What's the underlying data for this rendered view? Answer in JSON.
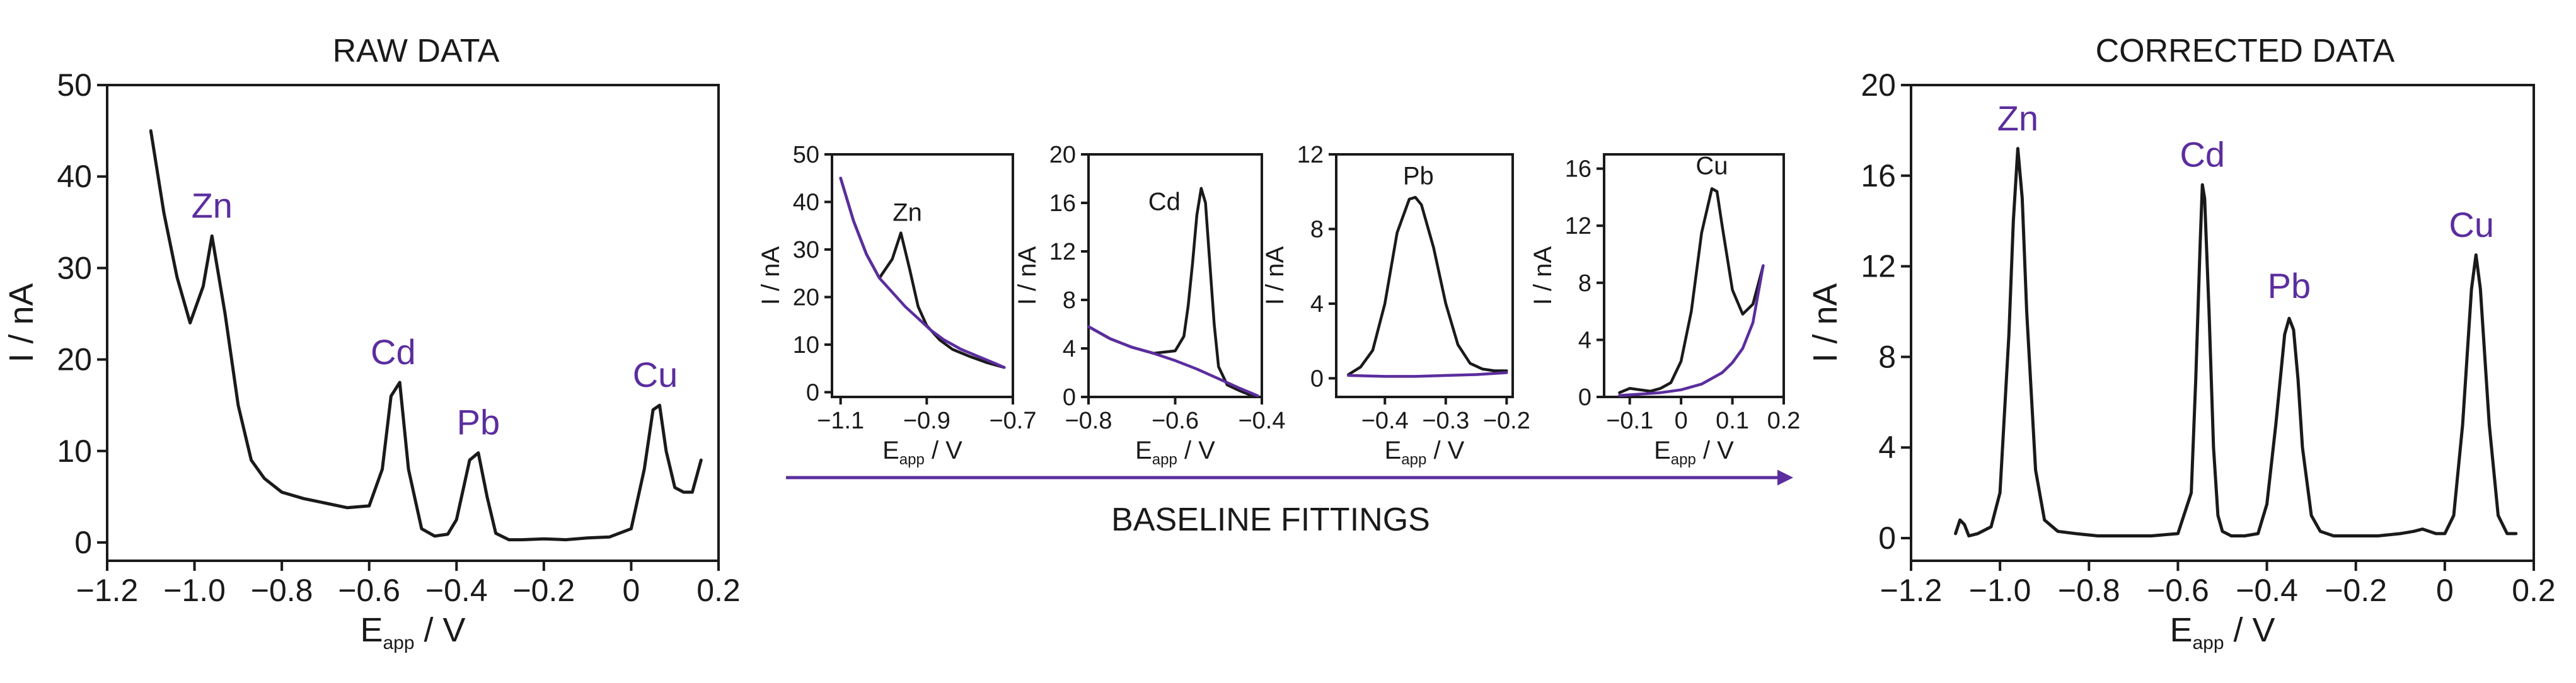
{
  "colors": {
    "raw": "#1a1a1a",
    "baseline": "#5b2d9e",
    "label": "#5b2d9e"
  },
  "panels": {
    "raw": {
      "title": "RAW DATA",
      "xlabel_main": "E",
      "xlabel_sub": "app",
      "xlabel_unit": " / V",
      "ylabel": "I / nA"
    },
    "corrected": {
      "title": "CORRECTED DATA",
      "xlabel_main": "E",
      "xlabel_sub": "app",
      "xlabel_unit": " / V",
      "ylabel": "I / nA"
    }
  },
  "flow": {
    "label": "BASELINE FITTINGS"
  },
  "chart_data": [
    {
      "type": "line",
      "id": "raw",
      "title": "RAW DATA",
      "xlabel": "E_app / V",
      "ylabel": "I / nA",
      "xlim": [
        -1.2,
        0.2
      ],
      "ylim": [
        -2,
        50
      ],
      "xticks": [
        -1.2,
        -1.0,
        -0.8,
        -0.6,
        -0.4,
        -0.2,
        0,
        0.2
      ],
      "xticklabels": [
        "−1.2",
        "−1.0",
        "−0.8",
        "−0.6",
        "−0.4",
        "−0.2",
        "0",
        "0.2"
      ],
      "yticks": [
        0,
        10,
        20,
        30,
        40,
        50
      ],
      "yticklabels": [
        "0",
        "10",
        "20",
        "30",
        "40",
        "50"
      ],
      "series": [
        {
          "name": "raw",
          "color": "#1a1a1a",
          "x": [
            -1.1,
            -1.07,
            -1.04,
            -1.01,
            -0.98,
            -0.96,
            -0.93,
            -0.9,
            -0.87,
            -0.84,
            -0.8,
            -0.75,
            -0.7,
            -0.65,
            -0.6,
            -0.57,
            -0.55,
            -0.53,
            -0.51,
            -0.48,
            -0.45,
            -0.42,
            -0.4,
            -0.37,
            -0.35,
            -0.33,
            -0.31,
            -0.28,
            -0.25,
            -0.2,
            -0.15,
            -0.1,
            -0.05,
            0.0,
            0.03,
            0.05,
            0.065,
            0.08,
            0.1,
            0.12,
            0.14,
            0.16
          ],
          "y": [
            45,
            36,
            29,
            24,
            28,
            33.5,
            25,
            15,
            9,
            7,
            5.5,
            4.8,
            4.3,
            3.8,
            4,
            8,
            16,
            17.5,
            8,
            1.5,
            0.7,
            0.9,
            2.5,
            9,
            9.8,
            5,
            1,
            0.3,
            0.3,
            0.4,
            0.3,
            0.5,
            0.6,
            1.5,
            8,
            14.5,
            15,
            10,
            6,
            5.5,
            5.5,
            9
          ]
        }
      ],
      "annotations": [
        {
          "text": "Zn",
          "x": -0.96,
          "y": 35.5
        },
        {
          "text": "Cd",
          "x": -0.545,
          "y": 19.5
        },
        {
          "text": "Pb",
          "x": -0.35,
          "y": 11.8
        },
        {
          "text": "Cu",
          "x": 0.055,
          "y": 17
        }
      ]
    },
    {
      "type": "line",
      "id": "fit-zn",
      "xlabel": "E_app / V",
      "ylabel": "I / nA",
      "xlim": [
        -1.12,
        -0.7
      ],
      "ylim": [
        -1,
        50
      ],
      "xticks": [
        -1.1,
        -0.9,
        -0.7
      ],
      "xticklabels": [
        "−1.1",
        "−0.9",
        "−0.7"
      ],
      "yticks": [
        0,
        10,
        20,
        30,
        40,
        50
      ],
      "yticklabels": [
        "0",
        "10",
        "20",
        "30",
        "40",
        "50"
      ],
      "series": [
        {
          "name": "raw",
          "color": "#1a1a1a",
          "x": [
            -1.1,
            -1.07,
            -1.04,
            -1.01,
            -0.98,
            -0.96,
            -0.94,
            -0.92,
            -0.9,
            -0.87,
            -0.84,
            -0.8,
            -0.76,
            -0.72
          ],
          "y": [
            45,
            36,
            29,
            24,
            28,
            33.5,
            26,
            18,
            14,
            11,
            9,
            7.5,
            6.2,
            5.2
          ]
        },
        {
          "name": "baseline",
          "color": "#5b2d9e",
          "x": [
            -1.1,
            -1.07,
            -1.04,
            -1.01,
            -0.98,
            -0.95,
            -0.92,
            -0.89,
            -0.86,
            -0.82,
            -0.78,
            -0.74,
            -0.72
          ],
          "y": [
            45,
            36,
            29,
            24,
            21,
            18,
            15.5,
            13,
            11,
            9,
            7.5,
            6,
            5.2
          ]
        }
      ],
      "annotations": [
        {
          "text": "Zn",
          "x": -0.945,
          "y": 36
        }
      ]
    },
    {
      "type": "line",
      "id": "fit-cd",
      "xlabel": "E_app / V",
      "ylabel": "I / nA",
      "xlim": [
        -0.8,
        -0.4
      ],
      "ylim": [
        0,
        20
      ],
      "xticks": [
        -0.8,
        -0.6,
        -0.4
      ],
      "xticklabels": [
        "−0.8",
        "−0.6",
        "−0.4"
      ],
      "yticks": [
        0,
        4,
        8,
        12,
        16,
        20
      ],
      "yticklabels": [
        "0",
        "4",
        "8",
        "12",
        "16",
        "20"
      ],
      "series": [
        {
          "name": "raw",
          "color": "#1a1a1a",
          "x": [
            -0.8,
            -0.75,
            -0.7,
            -0.65,
            -0.6,
            -0.58,
            -0.57,
            -0.56,
            -0.55,
            -0.54,
            -0.53,
            -0.52,
            -0.51,
            -0.5,
            -0.48,
            -0.45,
            -0.43,
            -0.41
          ],
          "y": [
            5.8,
            4.8,
            4.1,
            3.6,
            3.8,
            5,
            7.5,
            11,
            15,
            17.2,
            16,
            11,
            6,
            2.5,
            1,
            0.5,
            0.2,
            0.1
          ]
        },
        {
          "name": "baseline",
          "color": "#5b2d9e",
          "x": [
            -0.8,
            -0.75,
            -0.7,
            -0.65,
            -0.6,
            -0.55,
            -0.5,
            -0.45,
            -0.41
          ],
          "y": [
            5.8,
            4.8,
            4.1,
            3.6,
            3.0,
            2.3,
            1.5,
            0.7,
            0.1
          ]
        }
      ],
      "annotations": [
        {
          "text": "Cd",
          "x": -0.625,
          "y": 15.4
        }
      ]
    },
    {
      "type": "line",
      "id": "fit-pb",
      "xlabel": "E_app / V",
      "ylabel": "I / nA",
      "xlim": [
        -0.48,
        -0.19
      ],
      "ylim": [
        -1,
        12
      ],
      "xticks": [
        -0.4,
        -0.3,
        -0.2
      ],
      "xticklabels": [
        "−0.4",
        "−0.3",
        "−0.2"
      ],
      "yticks": [
        0,
        4,
        8,
        12
      ],
      "yticklabels": [
        "0",
        "4",
        "8",
        "12"
      ],
      "series": [
        {
          "name": "raw",
          "color": "#1a1a1a",
          "x": [
            -0.46,
            -0.44,
            -0.42,
            -0.4,
            -0.38,
            -0.36,
            -0.35,
            -0.34,
            -0.32,
            -0.3,
            -0.28,
            -0.26,
            -0.24,
            -0.22,
            -0.2
          ],
          "y": [
            0.2,
            0.6,
            1.5,
            4,
            7.8,
            9.6,
            9.7,
            9.3,
            7,
            4,
            1.8,
            0.8,
            0.5,
            0.4,
            0.4
          ]
        },
        {
          "name": "baseline",
          "color": "#5b2d9e",
          "x": [
            -0.46,
            -0.4,
            -0.35,
            -0.3,
            -0.25,
            -0.2
          ],
          "y": [
            0.15,
            0.1,
            0.1,
            0.15,
            0.2,
            0.3
          ]
        }
      ],
      "annotations": [
        {
          "text": "Pb",
          "x": -0.345,
          "y": 10.4
        }
      ]
    },
    {
      "type": "line",
      "id": "fit-cu",
      "xlabel": "E_app / V",
      "ylabel": "I / nA",
      "xlim": [
        -0.15,
        0.2
      ],
      "ylim": [
        0,
        17
      ],
      "xticks": [
        -0.1,
        0,
        0.1,
        0.2
      ],
      "xticklabels": [
        "−0.1",
        "0",
        "0.1",
        "0.2"
      ],
      "yticks": [
        0,
        4,
        8,
        12,
        16
      ],
      "yticklabels": [
        "0",
        "4",
        "8",
        "12",
        "16"
      ],
      "series": [
        {
          "name": "raw",
          "color": "#1a1a1a",
          "x": [
            -0.12,
            -0.1,
            -0.08,
            -0.06,
            -0.04,
            -0.02,
            0.0,
            0.02,
            0.04,
            0.06,
            0.07,
            0.08,
            0.1,
            0.12,
            0.14,
            0.16
          ],
          "y": [
            0.3,
            0.6,
            0.5,
            0.4,
            0.6,
            1,
            2.5,
            6,
            11.5,
            14.6,
            14.4,
            12,
            7.5,
            5.8,
            6.5,
            9.2
          ]
        },
        {
          "name": "baseline",
          "color": "#5b2d9e",
          "x": [
            -0.12,
            -0.08,
            -0.04,
            0.0,
            0.04,
            0.08,
            0.1,
            0.12,
            0.14,
            0.16
          ],
          "y": [
            0.1,
            0.2,
            0.3,
            0.5,
            0.9,
            1.7,
            2.4,
            3.4,
            5.2,
            9.2
          ]
        }
      ],
      "annotations": [
        {
          "text": "Cu",
          "x": 0.06,
          "y": 15.6
        }
      ]
    },
    {
      "type": "line",
      "id": "corrected",
      "title": "CORRECTED DATA",
      "xlabel": "E_app / V",
      "ylabel": "I / nA",
      "xlim": [
        -1.2,
        0.2
      ],
      "ylim": [
        -1,
        20
      ],
      "xticks": [
        -1.2,
        -1.0,
        -0.8,
        -0.6,
        -0.4,
        -0.2,
        0,
        0.2
      ],
      "xticklabels": [
        "−1.2",
        "−1.0",
        "−0.8",
        "−0.6",
        "−0.4",
        "−0.2",
        "0",
        "0.2"
      ],
      "yticks": [
        0,
        4,
        8,
        12,
        16,
        20
      ],
      "yticklabels": [
        "0",
        "4",
        "8",
        "12",
        "16",
        "20"
      ],
      "series": [
        {
          "name": "corrected",
          "color": "#1a1a1a",
          "x": [
            -1.1,
            -1.09,
            -1.08,
            -1.07,
            -1.05,
            -1.02,
            -1.0,
            -0.98,
            -0.97,
            -0.96,
            -0.95,
            -0.94,
            -0.92,
            -0.9,
            -0.87,
            -0.83,
            -0.78,
            -0.72,
            -0.66,
            -0.6,
            -0.57,
            -0.56,
            -0.55,
            -0.545,
            -0.54,
            -0.53,
            -0.52,
            -0.51,
            -0.5,
            -0.48,
            -0.45,
            -0.42,
            -0.4,
            -0.38,
            -0.36,
            -0.35,
            -0.34,
            -0.33,
            -0.32,
            -0.3,
            -0.28,
            -0.25,
            -0.2,
            -0.15,
            -0.1,
            -0.07,
            -0.05,
            -0.02,
            0.0,
            0.02,
            0.04,
            0.06,
            0.07,
            0.08,
            0.1,
            0.12,
            0.14,
            0.16
          ],
          "y": [
            0.2,
            0.8,
            0.6,
            0.1,
            0.2,
            0.5,
            2,
            9,
            14,
            17.2,
            15,
            10,
            3,
            0.8,
            0.3,
            0.2,
            0.1,
            0.1,
            0.1,
            0.2,
            2,
            7,
            13,
            15.6,
            15,
            10,
            4,
            1,
            0.3,
            0.1,
            0.1,
            0.2,
            1.5,
            5,
            9,
            9.7,
            9.2,
            7,
            4,
            1,
            0.3,
            0.1,
            0.1,
            0.1,
            0.2,
            0.3,
            0.4,
            0.2,
            0.2,
            1,
            5,
            11,
            12.5,
            11,
            5,
            1,
            0.2,
            0.2
          ]
        }
      ],
      "annotations": [
        {
          "text": "Zn",
          "x": -0.96,
          "y": 18
        },
        {
          "text": "Cd",
          "x": -0.545,
          "y": 16.4
        },
        {
          "text": "Pb",
          "x": -0.35,
          "y": 10.6
        },
        {
          "text": "Cu",
          "x": 0.06,
          "y": 13.3
        }
      ]
    }
  ]
}
